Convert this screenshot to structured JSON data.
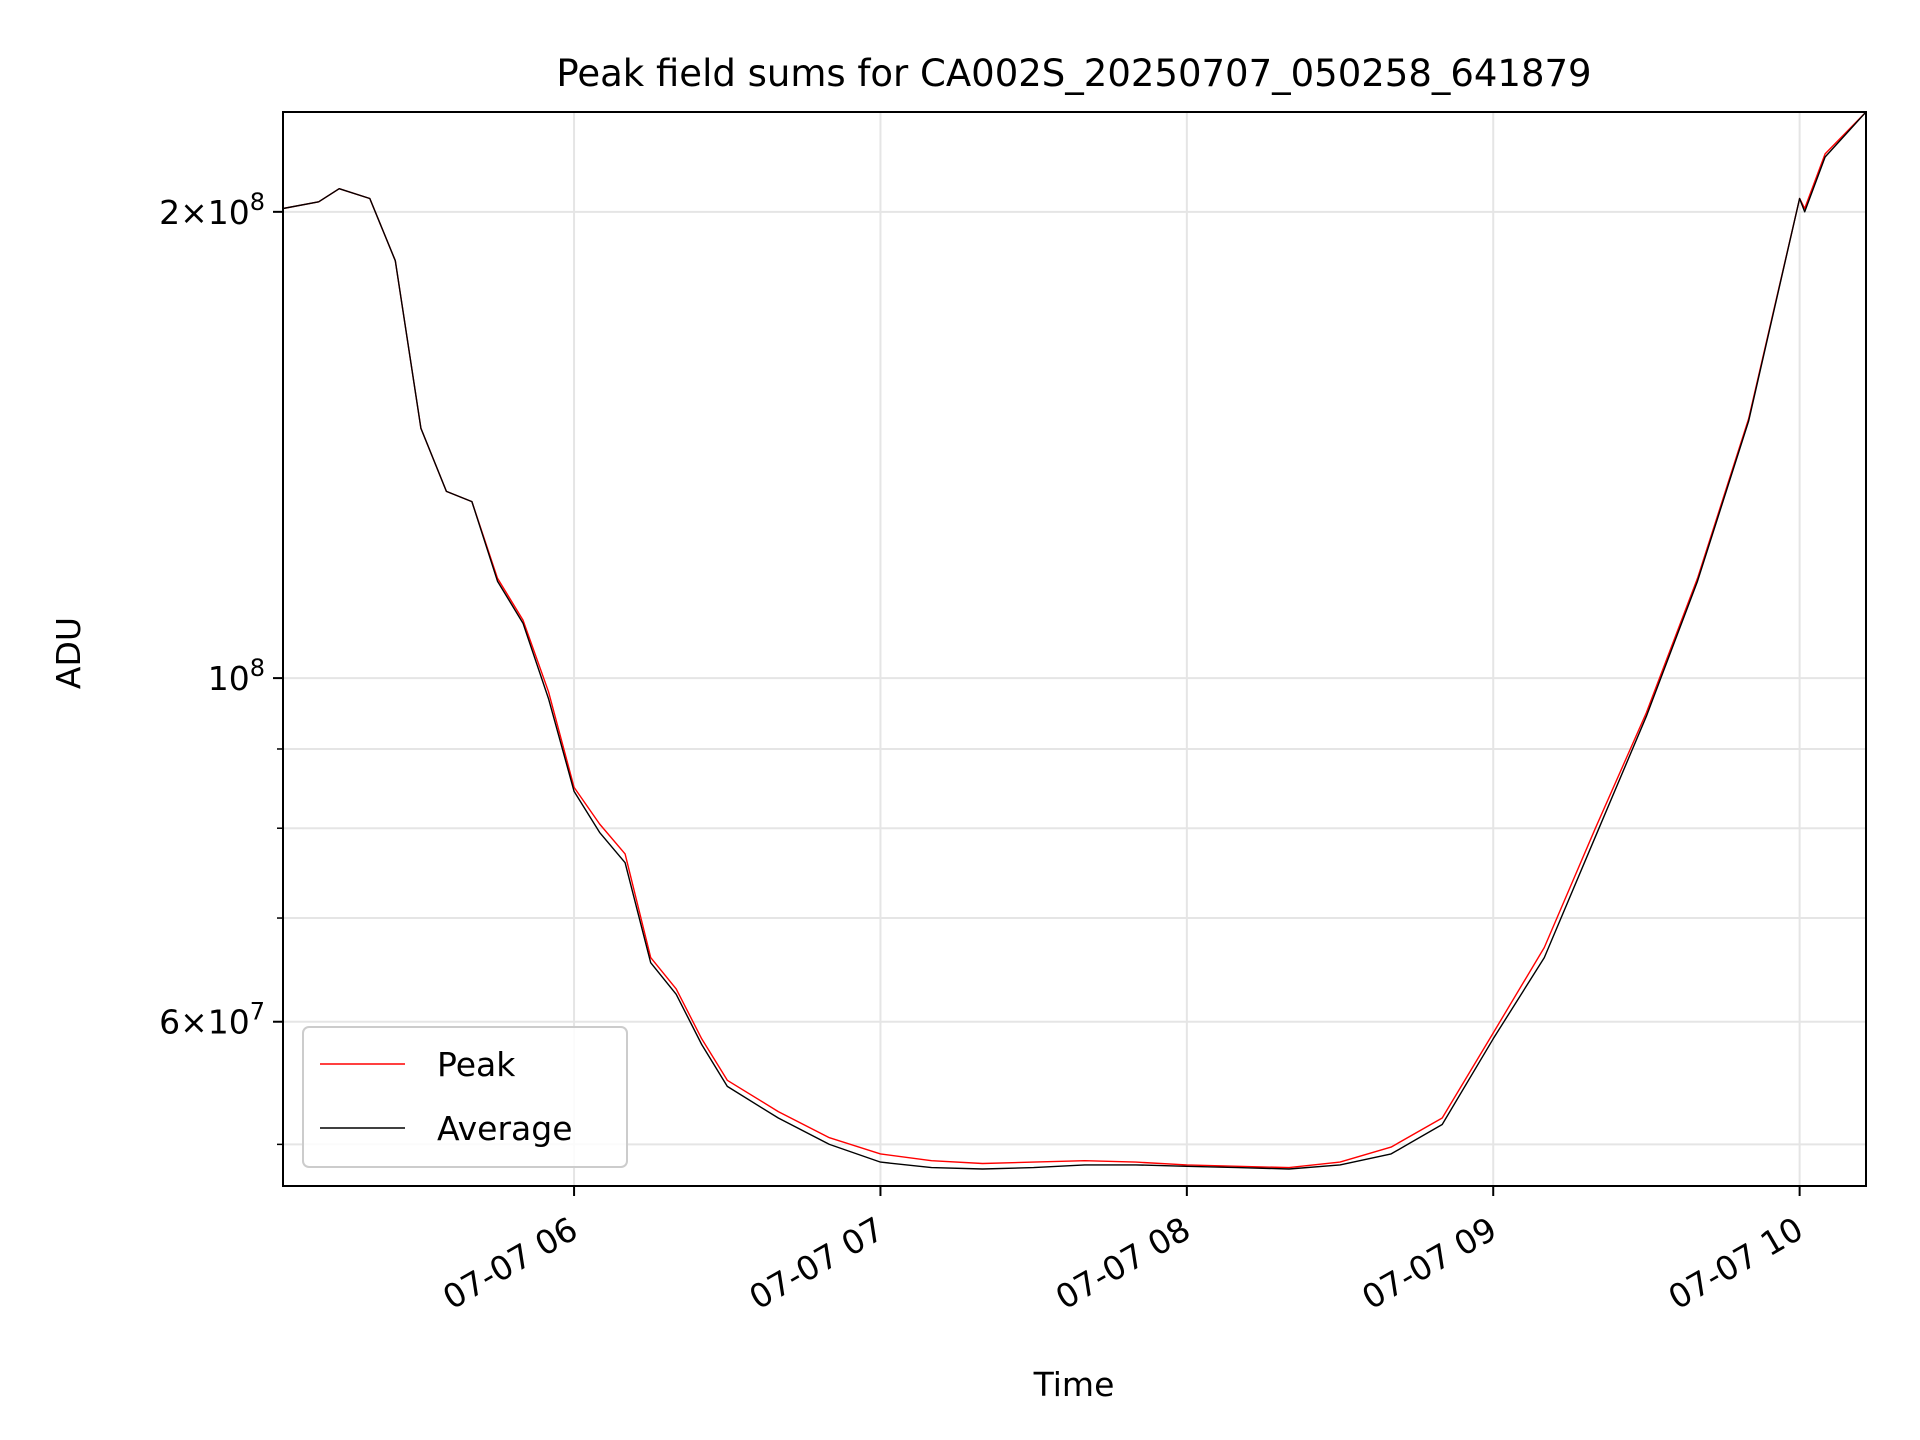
{
  "chart_data": {
    "type": "line",
    "title": "Peak field sums for CA002S_20250707_050258_641879",
    "xlabel": "Time",
    "ylabel": "ADU",
    "yscale": "log",
    "xlim": [
      "2025-07-07 05:03",
      "2025-07-07 10:13"
    ],
    "ylim": [
      47000000,
      232000000
    ],
    "grid": true,
    "legend_position": "lower-left",
    "x_ticks": [
      {
        "value": "2025-07-07 06:00",
        "label": "07-07 06"
      },
      {
        "value": "2025-07-07 07:00",
        "label": "07-07 07"
      },
      {
        "value": "2025-07-07 08:00",
        "label": "07-07 08"
      },
      {
        "value": "2025-07-07 09:00",
        "label": "07-07 09"
      },
      {
        "value": "2025-07-07 10:00",
        "label": "07-07 10"
      }
    ],
    "y_ticks": [
      {
        "value": 200000000,
        "label": "2×10^8",
        "mantissa": "2",
        "exponent": "8"
      },
      {
        "value": 100000000,
        "label": "10^8",
        "mantissa": "",
        "exponent": "8"
      },
      {
        "value": 60000000,
        "label": "6×10^7",
        "mantissa": "6",
        "exponent": "7"
      }
    ],
    "y_minor_ticks": [
      50000000,
      70000000,
      80000000,
      90000000
    ],
    "series": [
      {
        "name": "Peak",
        "color": "#ff0000",
        "x": [
          "2025-07-07 05:03",
          "2025-07-07 05:10",
          "2025-07-07 05:14",
          "2025-07-07 05:20",
          "2025-07-07 05:25",
          "2025-07-07 05:30",
          "2025-07-07 05:35",
          "2025-07-07 05:40",
          "2025-07-07 05:45",
          "2025-07-07 05:50",
          "2025-07-07 05:55",
          "2025-07-07 06:00",
          "2025-07-07 06:05",
          "2025-07-07 06:10",
          "2025-07-07 06:15",
          "2025-07-07 06:20",
          "2025-07-07 06:25",
          "2025-07-07 06:30",
          "2025-07-07 06:40",
          "2025-07-07 06:50",
          "2025-07-07 07:00",
          "2025-07-07 07:10",
          "2025-07-07 07:20",
          "2025-07-07 07:30",
          "2025-07-07 07:40",
          "2025-07-07 07:50",
          "2025-07-07 08:00",
          "2025-07-07 08:10",
          "2025-07-07 08:20",
          "2025-07-07 08:30",
          "2025-07-07 08:40",
          "2025-07-07 08:50",
          "2025-07-07 09:00",
          "2025-07-07 09:10",
          "2025-07-07 09:20",
          "2025-07-07 09:30",
          "2025-07-07 09:40",
          "2025-07-07 09:50",
          "2025-07-07 10:00",
          "2025-07-07 10:01",
          "2025-07-07 10:05",
          "2025-07-07 10:13"
        ],
        "values": [
          201000000,
          203000000,
          207000000,
          204000000,
          186000000,
          145000000,
          132000000,
          130000000,
          116000000,
          109000000,
          98000000,
          85000000,
          80500000,
          77000000,
          66000000,
          63000000,
          58500000,
          55000000,
          52500000,
          50500000,
          49300000,
          48800000,
          48600000,
          48700000,
          48800000,
          48700000,
          48500000,
          48400000,
          48300000,
          48700000,
          49800000,
          52000000,
          59000000,
          67000000,
          80000000,
          95000000,
          116000000,
          147000000,
          204000000,
          201000000,
          218000000,
          232000000
        ]
      },
      {
        "name": "Average",
        "color": "#000000",
        "x": [
          "2025-07-07 05:03",
          "2025-07-07 05:10",
          "2025-07-07 05:14",
          "2025-07-07 05:20",
          "2025-07-07 05:25",
          "2025-07-07 05:30",
          "2025-07-07 05:35",
          "2025-07-07 05:40",
          "2025-07-07 05:45",
          "2025-07-07 05:50",
          "2025-07-07 05:55",
          "2025-07-07 06:00",
          "2025-07-07 06:05",
          "2025-07-07 06:10",
          "2025-07-07 06:15",
          "2025-07-07 06:20",
          "2025-07-07 06:25",
          "2025-07-07 06:30",
          "2025-07-07 06:40",
          "2025-07-07 06:50",
          "2025-07-07 07:00",
          "2025-07-07 07:10",
          "2025-07-07 07:20",
          "2025-07-07 07:30",
          "2025-07-07 07:40",
          "2025-07-07 07:50",
          "2025-07-07 08:00",
          "2025-07-07 08:10",
          "2025-07-07 08:20",
          "2025-07-07 08:30",
          "2025-07-07 08:40",
          "2025-07-07 08:50",
          "2025-07-07 09:00",
          "2025-07-07 09:10",
          "2025-07-07 09:20",
          "2025-07-07 09:30",
          "2025-07-07 09:40",
          "2025-07-07 09:50",
          "2025-07-07 10:00",
          "2025-07-07 10:01",
          "2025-07-07 10:05",
          "2025-07-07 10:13"
        ],
        "values": [
          201000000,
          203000000,
          207000000,
          204000000,
          186000000,
          145000000,
          132000000,
          130000000,
          115500000,
          108500000,
          97000000,
          84500000,
          79500000,
          76000000,
          65500000,
          62500000,
          58000000,
          54500000,
          52000000,
          50000000,
          48700000,
          48300000,
          48200000,
          48300000,
          48500000,
          48500000,
          48400000,
          48300000,
          48200000,
          48500000,
          49300000,
          51500000,
          58500000,
          66000000,
          79000000,
          94500000,
          115500000,
          146500000,
          204000000,
          200000000,
          217000000,
          232000000
        ]
      }
    ]
  }
}
